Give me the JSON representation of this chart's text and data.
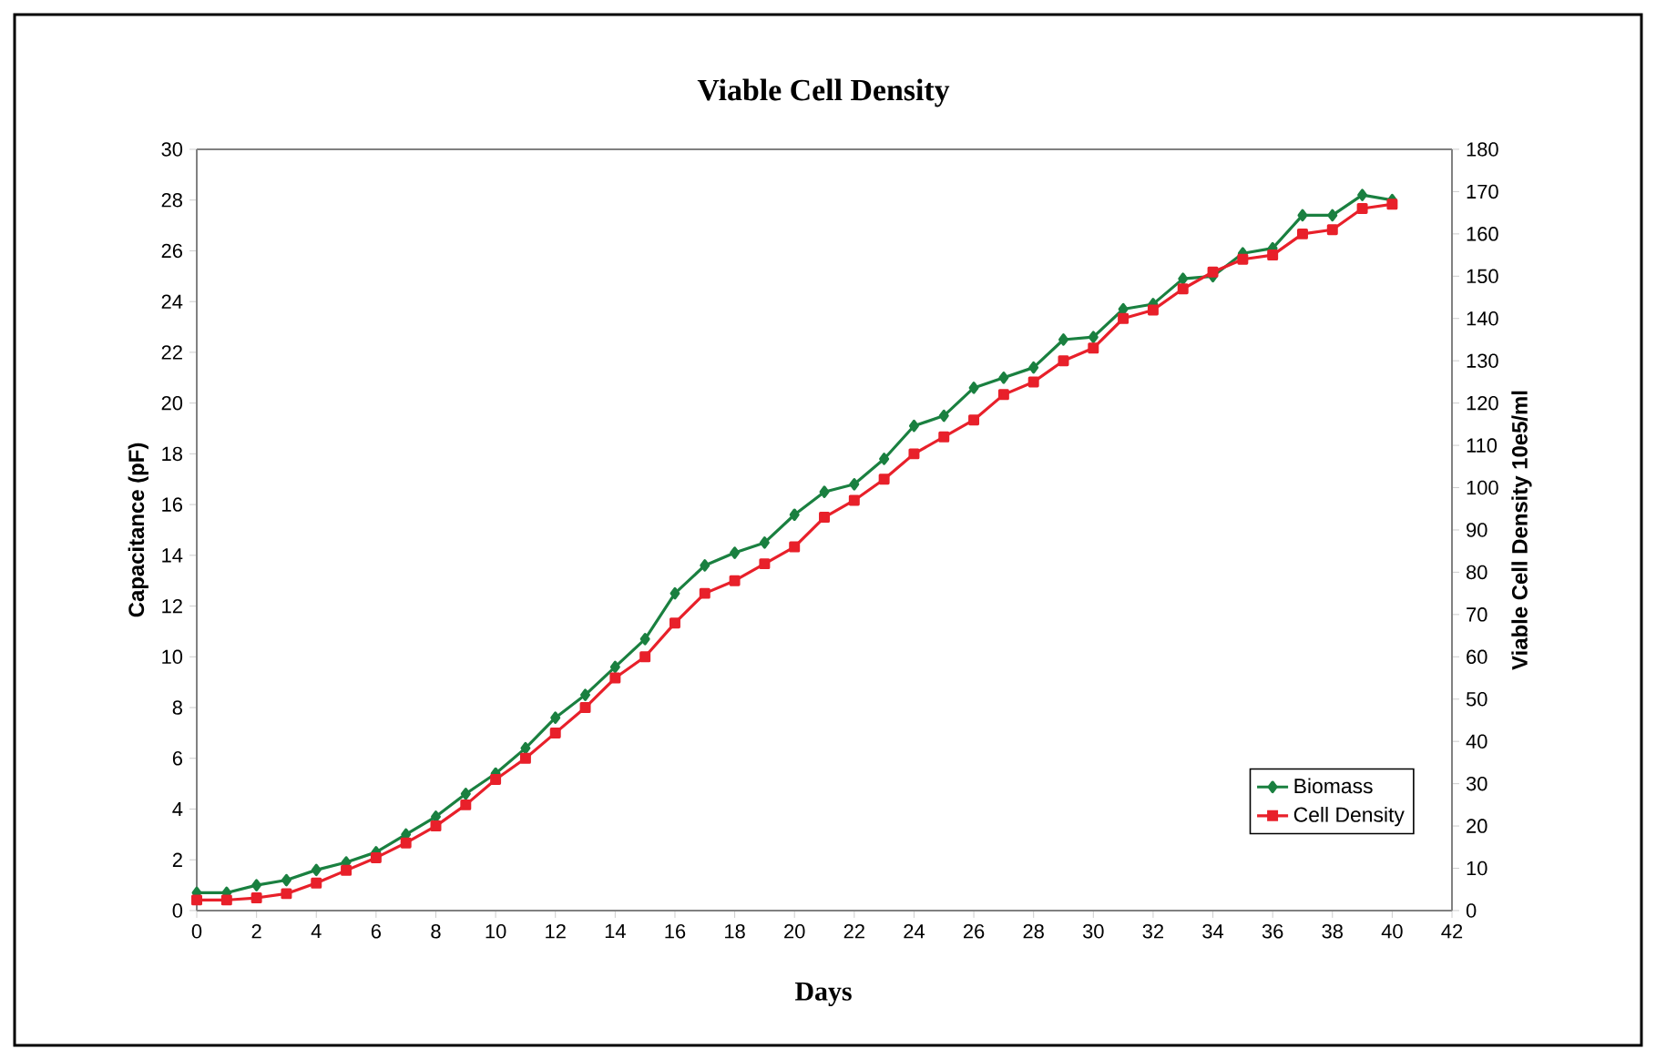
{
  "chart_data": {
    "type": "line",
    "title": "Viable Cell Density",
    "xlabel": "Days",
    "ylabel": "Capacitance (pF)",
    "y2label": "Viable Cell Density 10e5/ml",
    "x": [
      0,
      1,
      2,
      3,
      4,
      5,
      6,
      7,
      8,
      9,
      10,
      11,
      12,
      13,
      14,
      15,
      16,
      17,
      18,
      19,
      20,
      21,
      22,
      23,
      24,
      25,
      26,
      27,
      28,
      29,
      30,
      31,
      32,
      33,
      34,
      35,
      36,
      37,
      38,
      39,
      40
    ],
    "series": [
      {
        "name": "Biomass",
        "color": "#1a8040",
        "marker": "diamond",
        "values": [
          0.7,
          0.7,
          1.0,
          1.2,
          1.6,
          1.9,
          2.3,
          3.0,
          3.7,
          4.6,
          5.4,
          6.4,
          7.6,
          8.5,
          9.6,
          10.7,
          12.5,
          13.6,
          14.1,
          14.5,
          15.6,
          16.5,
          16.8,
          17.8,
          19.1,
          19.5,
          20.6,
          21.0,
          21.4,
          22.5,
          22.6,
          23.7,
          23.9,
          24.9,
          25.0,
          25.9,
          26.1,
          27.4,
          27.4,
          28.2,
          28.0
        ]
      },
      {
        "name": "Cell Density",
        "color": "#e8202a",
        "marker": "square",
        "axis": "y2",
        "values": [
          2.5,
          2.5,
          3,
          4,
          6.5,
          9.5,
          12.5,
          16,
          20,
          25,
          31,
          36,
          42,
          48,
          55,
          60,
          68,
          75,
          78,
          82,
          86,
          93,
          97,
          102,
          108,
          112,
          116,
          122,
          125,
          130,
          133,
          140,
          142,
          147,
          151,
          154,
          155,
          160,
          161,
          166,
          167
        ]
      }
    ],
    "xlim": [
      0,
      42
    ],
    "xticks": [
      0,
      2,
      4,
      6,
      8,
      10,
      12,
      14,
      16,
      18,
      20,
      22,
      24,
      26,
      28,
      30,
      32,
      34,
      36,
      38,
      40,
      42
    ],
    "ylim": [
      0,
      30
    ],
    "yticks": [
      0,
      2,
      4,
      6,
      8,
      10,
      12,
      14,
      16,
      18,
      20,
      22,
      24,
      26,
      28,
      30
    ],
    "y2lim": [
      0,
      180
    ],
    "y2ticks": [
      0,
      10,
      20,
      30,
      40,
      50,
      60,
      70,
      80,
      90,
      100,
      110,
      120,
      130,
      140,
      150,
      160,
      170,
      180
    ],
    "grid": false,
    "legend": "bottom right",
    "line_style": "solid"
  }
}
